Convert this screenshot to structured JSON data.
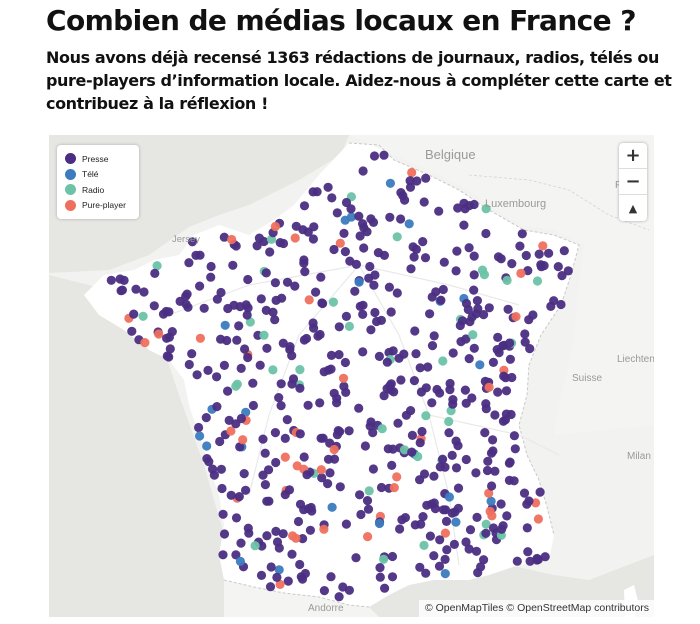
{
  "page": {
    "title": "Combien de médias locaux en France ?",
    "subtitle": "Nous avons déjà recensé 1363 rédactions de journaux, radios, télés ou pure-players d’information locale. Aidez-nous à compléter cette carte et contribuez à la réflexion !"
  },
  "map": {
    "legend": [
      {
        "label": "Presse",
        "color": "#4b2e83"
      },
      {
        "label": "Télé",
        "color": "#3b7bbf"
      },
      {
        "label": "Radio",
        "color": "#6cc3a8"
      },
      {
        "label": "Pure-player",
        "color": "#ef6f5e"
      }
    ],
    "zoom_in_label": "+",
    "zoom_out_label": "−",
    "compass_label": "▲",
    "attribution": "© OpenMapTiles © OpenStreetMap contributors",
    "place_labels": {
      "belgique": "Belgique",
      "luxembourg": "Luxembourg",
      "jersey": "Jersey",
      "liechtenstein": "Liechtenst",
      "suisse": "Suisse",
      "milan": "Milan",
      "andorre": "Andorre",
      "frankfurt": "F"
    }
  }
}
